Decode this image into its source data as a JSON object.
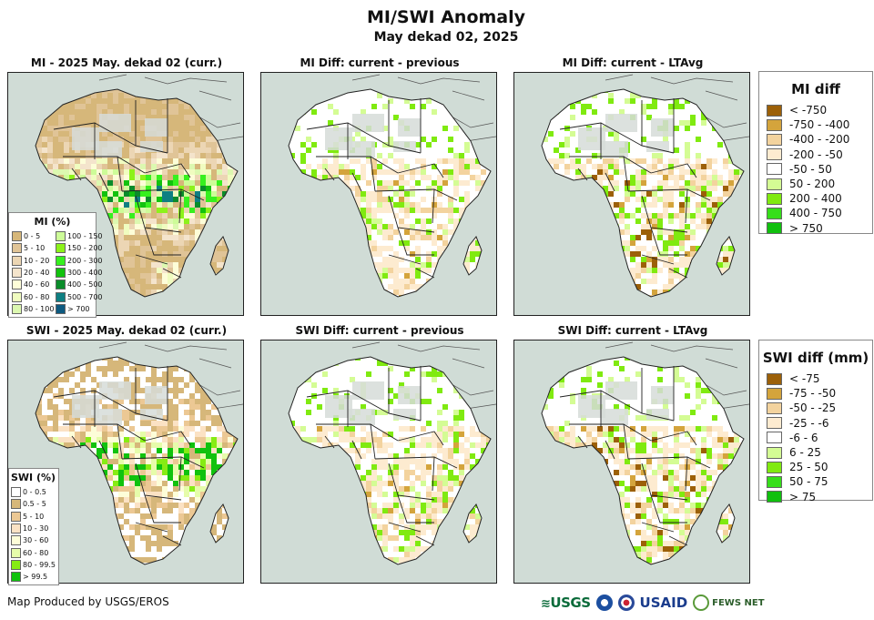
{
  "header": {
    "title": "MI/SWI Anomaly",
    "subtitle": "May dekad 02, 2025"
  },
  "panels": [
    {
      "title": "MI - 2025 May. dekad 02 (curr.)",
      "variable": "MI",
      "kind": "current"
    },
    {
      "title": "MI Diff: current - previous",
      "variable": "MI",
      "kind": "diff-previous"
    },
    {
      "title": "MI Diff: current - LTAvg",
      "variable": "MI",
      "kind": "diff-ltavg"
    },
    {
      "title": "SWI - 2025 May. dekad 02 (curr.)",
      "variable": "SWI",
      "kind": "current"
    },
    {
      "title": "SWI Diff: current - previous",
      "variable": "SWI",
      "kind": "diff-previous"
    },
    {
      "title": "SWI Diff: current - LTAvg",
      "variable": "SWI",
      "kind": "diff-ltavg"
    }
  ],
  "legends": {
    "mi_pct": {
      "title": "MI (%)",
      "items": [
        {
          "label": "0 - 5",
          "color": "#d6b77a"
        },
        {
          "label": "5 - 10",
          "color": "#e0c497"
        },
        {
          "label": "10 - 20",
          "color": "#ecd6b4"
        },
        {
          "label": "20 - 40",
          "color": "#f4e4cc"
        },
        {
          "label": "40 - 60",
          "color": "#fdfdd8"
        },
        {
          "label": "60 - 80",
          "color": "#f0fcc0"
        },
        {
          "label": "80 - 100",
          "color": "#dcf8b0"
        },
        {
          "label": "100 - 150",
          "color": "#cdfc98"
        },
        {
          "label": "150 - 200",
          "color": "#8cf21a"
        },
        {
          "label": "200 - 300",
          "color": "#36f01e"
        },
        {
          "label": "300 - 400",
          "color": "#12c20e"
        },
        {
          "label": "400 - 500",
          "color": "#0a8c2a"
        },
        {
          "label": "500 - 700",
          "color": "#0e7f82"
        },
        {
          "label": "> 700",
          "color": "#0d5a80"
        }
      ]
    },
    "swi_pct": {
      "title": "SWI (%)",
      "items": [
        {
          "label": "0 - 0.5",
          "color": "#ffffff"
        },
        {
          "label": "0.5 - 5",
          "color": "#d6b77a"
        },
        {
          "label": "5 - 10",
          "color": "#ecc894"
        },
        {
          "label": "10 - 30",
          "color": "#fbe2c4"
        },
        {
          "label": "30 - 60",
          "color": "#fdfdd8"
        },
        {
          "label": "60 - 80",
          "color": "#e6fcaa"
        },
        {
          "label": "80 - 99.5",
          "color": "#86ec14"
        },
        {
          "label": "> 99.5",
          "color": "#10c20e"
        }
      ]
    },
    "mi_diff": {
      "title": "MI diff",
      "items": [
        {
          "label": "< -750",
          "color": "#9c6008"
        },
        {
          "label": "-750 - -400",
          "color": "#d4a43c"
        },
        {
          "label": "-400 - -200",
          "color": "#f3d39e"
        },
        {
          "label": "-200 - -50",
          "color": "#fdebd0"
        },
        {
          "label": "-50 - 50",
          "color": "#ffffff"
        },
        {
          "label": "50 - 200",
          "color": "#d4fc94"
        },
        {
          "label": "200 - 400",
          "color": "#80ea10"
        },
        {
          "label": "400 - 750",
          "color": "#36de1a"
        },
        {
          "label": "> 750",
          "color": "#10c00e"
        }
      ]
    },
    "swi_diff": {
      "title": "SWI diff (mm)",
      "items": [
        {
          "label": "< -75",
          "color": "#9c6008"
        },
        {
          "label": "-75 - -50",
          "color": "#d4a43c"
        },
        {
          "label": "-50 - -25",
          "color": "#f3d39e"
        },
        {
          "label": "-25 - -6",
          "color": "#fdebd0"
        },
        {
          "label": "-6 - 6",
          "color": "#ffffff"
        },
        {
          "label": "6 - 25",
          "color": "#d4fc94"
        },
        {
          "label": "25 - 50",
          "color": "#80ea10"
        },
        {
          "label": "50 - 75",
          "color": "#36de1a"
        },
        {
          "label": "> 75",
          "color": "#10c00e"
        }
      ]
    }
  },
  "footer": {
    "credit": "Map Produced by USGS/EROS",
    "logos": [
      "USGS",
      "NOAA",
      "USDA",
      "USAID",
      "FEWS NET"
    ]
  },
  "colors": {
    "ocean": "#d0dcd6",
    "land_bg": "#ffffff",
    "border": "#222222"
  }
}
